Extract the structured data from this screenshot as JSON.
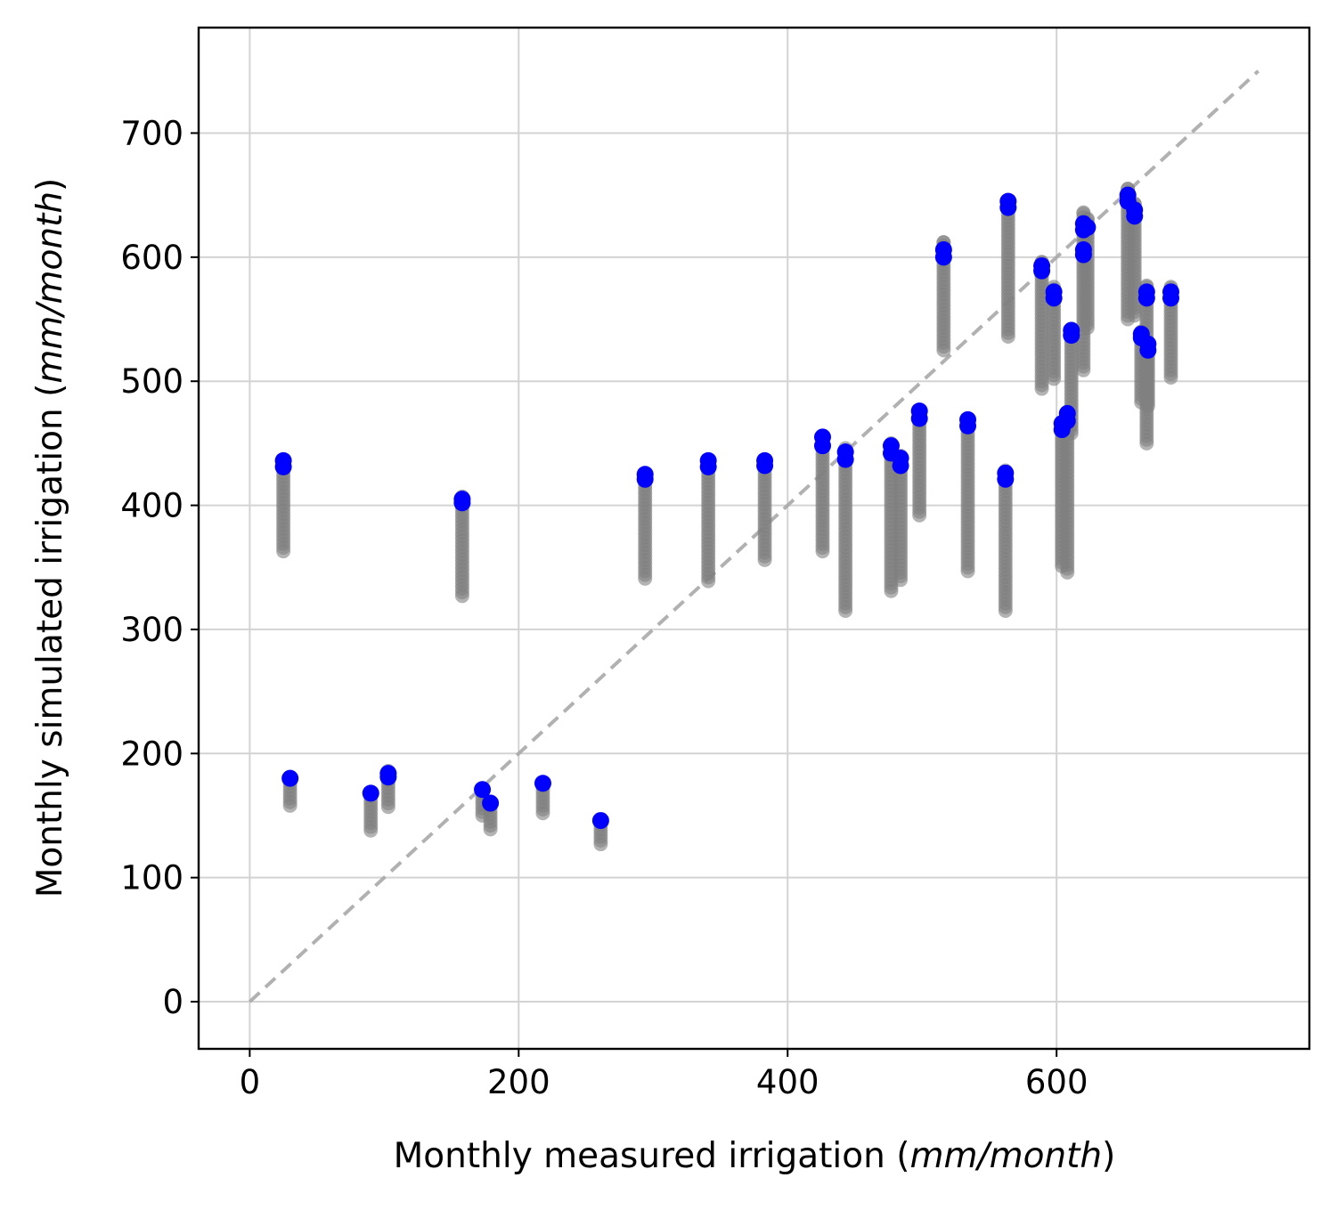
{
  "chart_data": {
    "type": "scatter",
    "title": "",
    "xlabel": "Monthly measured irrigation (mm/month)",
    "ylabel": "Monthly simulated irrigation (mm/month)",
    "xlabel_parts": {
      "pre": "Monthly measured irrigation (",
      "italic": "mm/month",
      "post": ")"
    },
    "ylabel_parts": {
      "pre": "Monthly simulated irrigation (",
      "italic": "mm/month",
      "post": ")"
    },
    "xlim": [
      -38,
      788
    ],
    "ylim": [
      -38,
      785
    ],
    "xticks": [
      0,
      200,
      400,
      600
    ],
    "yticks": [
      0,
      100,
      200,
      300,
      400,
      500,
      600,
      700
    ],
    "grid": true,
    "legend": "none",
    "colors": {
      "ensemble": "#808080",
      "best": "#0000ff",
      "one_to_one": "#a9a9a9"
    },
    "one_to_one_line": {
      "from": [
        0,
        0
      ],
      "to": [
        750,
        750
      ],
      "style": "dashed"
    },
    "series": [
      {
        "role": "ensemble",
        "color": "#808080",
        "columns": [
          {
            "x": 25,
            "ymin": 363,
            "ymax": 436
          },
          {
            "x": 30,
            "ymin": 158,
            "ymax": 180
          },
          {
            "x": 90,
            "ymin": 138,
            "ymax": 168
          },
          {
            "x": 103,
            "ymin": 157,
            "ymax": 186
          },
          {
            "x": 158,
            "ymin": 327,
            "ymax": 407
          },
          {
            "x": 173,
            "ymin": 150,
            "ymax": 172
          },
          {
            "x": 179,
            "ymin": 139,
            "ymax": 160
          },
          {
            "x": 218,
            "ymin": 152,
            "ymax": 175
          },
          {
            "x": 261,
            "ymin": 127,
            "ymax": 146
          },
          {
            "x": 294,
            "ymin": 341,
            "ymax": 426
          },
          {
            "x": 341,
            "ymin": 339,
            "ymax": 436
          },
          {
            "x": 383,
            "ymin": 356,
            "ymax": 437
          },
          {
            "x": 426,
            "ymin": 363,
            "ymax": 455
          },
          {
            "x": 443,
            "ymin": 315,
            "ymax": 446
          },
          {
            "x": 477,
            "ymin": 331,
            "ymax": 450
          },
          {
            "x": 484,
            "ymin": 340,
            "ymax": 440
          },
          {
            "x": 498,
            "ymin": 392,
            "ymax": 477
          },
          {
            "x": 516,
            "ymin": 525,
            "ymax": 612
          },
          {
            "x": 534,
            "ymin": 347,
            "ymax": 470
          },
          {
            "x": 562,
            "ymin": 315,
            "ymax": 428
          },
          {
            "x": 564,
            "ymin": 536,
            "ymax": 646
          },
          {
            "x": 589,
            "ymin": 494,
            "ymax": 596
          },
          {
            "x": 598,
            "ymin": 502,
            "ymax": 576
          },
          {
            "x": 604,
            "ymin": 351,
            "ymax": 467
          },
          {
            "x": 608,
            "ymin": 346,
            "ymax": 474
          },
          {
            "x": 611,
            "ymin": 458,
            "ymax": 542
          },
          {
            "x": 620,
            "ymin": 509,
            "ymax": 636
          },
          {
            "x": 623,
            "ymin": 543,
            "ymax": 631
          },
          {
            "x": 653,
            "ymin": 550,
            "ymax": 655
          },
          {
            "x": 658,
            "ymin": 553,
            "ymax": 643
          },
          {
            "x": 663,
            "ymin": 483,
            "ymax": 540
          },
          {
            "x": 667,
            "ymin": 450,
            "ymax": 577
          },
          {
            "x": 668,
            "ymin": 480,
            "ymax": 531
          },
          {
            "x": 685,
            "ymin": 503,
            "ymax": 576
          }
        ]
      },
      {
        "role": "best",
        "color": "#0000ff",
        "points": [
          [
            25,
            436
          ],
          [
            25,
            431
          ],
          [
            30,
            180
          ],
          [
            90,
            168
          ],
          [
            103,
            184
          ],
          [
            103,
            181
          ],
          [
            158,
            405
          ],
          [
            158,
            402
          ],
          [
            173,
            171
          ],
          [
            179,
            160
          ],
          [
            218,
            176
          ],
          [
            261,
            146
          ],
          [
            294,
            425
          ],
          [
            294,
            421
          ],
          [
            341,
            436
          ],
          [
            341,
            431
          ],
          [
            383,
            436
          ],
          [
            383,
            432
          ],
          [
            426,
            455
          ],
          [
            426,
            448
          ],
          [
            443,
            443
          ],
          [
            443,
            437
          ],
          [
            477,
            448
          ],
          [
            477,
            442
          ],
          [
            484,
            438
          ],
          [
            484,
            432
          ],
          [
            498,
            476
          ],
          [
            498,
            470
          ],
          [
            516,
            606
          ],
          [
            516,
            600
          ],
          [
            534,
            469
          ],
          [
            534,
            464
          ],
          [
            562,
            426
          ],
          [
            562,
            421
          ],
          [
            564,
            645
          ],
          [
            564,
            640
          ],
          [
            589,
            593
          ],
          [
            589,
            589
          ],
          [
            598,
            572
          ],
          [
            598,
            567
          ],
          [
            604,
            466
          ],
          [
            604,
            461
          ],
          [
            608,
            474
          ],
          [
            608,
            468
          ],
          [
            611,
            541
          ],
          [
            611,
            537
          ],
          [
            620,
            627
          ],
          [
            620,
            622
          ],
          [
            623,
            624
          ],
          [
            620,
            606
          ],
          [
            620,
            602
          ],
          [
            653,
            650
          ],
          [
            653,
            645
          ],
          [
            658,
            638
          ],
          [
            658,
            633
          ],
          [
            663,
            538
          ],
          [
            663,
            535
          ],
          [
            667,
            572
          ],
          [
            667,
            567
          ],
          [
            668,
            530
          ],
          [
            668,
            525
          ],
          [
            685,
            572
          ],
          [
            685,
            567
          ]
        ]
      }
    ]
  }
}
